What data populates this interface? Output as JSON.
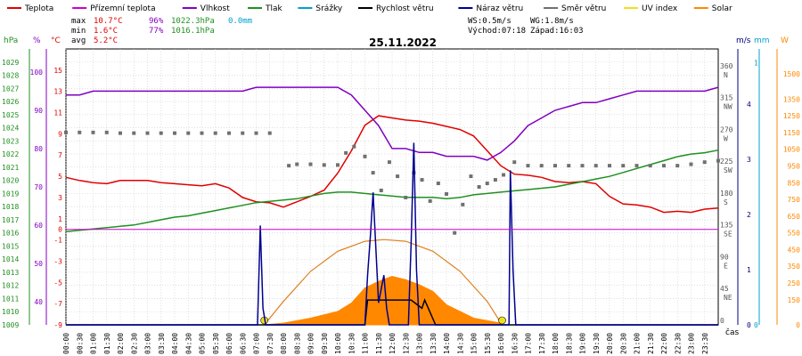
{
  "chart_data": {
    "type": "line",
    "title": "25.11.2022",
    "legend": [
      {
        "label": "Teplota",
        "color": "#e00000"
      },
      {
        "label": "Přízemní teplota",
        "color": "#cc00cc"
      },
      {
        "label": "Vlhkost",
        "color": "#8000c0"
      },
      {
        "label": "Tlak",
        "color": "#209020"
      },
      {
        "label": "Srážky",
        "color": "#00a0d0"
      },
      {
        "label": "Rychlost větru",
        "color": "#000000"
      },
      {
        "label": "Náraz větru",
        "color": "#000090"
      },
      {
        "label": "Směr větru",
        "color": "#707070"
      },
      {
        "label": "UV index",
        "color": "#f0e020"
      },
      {
        "label": "Solar",
        "color": "#ff8800"
      }
    ],
    "stats": {
      "max_label": "max",
      "max_temp": "10.7°C",
      "max_hum": "96%",
      "max_press": "1022.3hPa",
      "max_rain": "0.0mm",
      "min_label": "min",
      "min_temp": "1.6°C",
      "min_hum": "77%",
      "min_press": "1016.1hPa",
      "avg_label": "avg",
      "avg_temp": "5.2°C"
    },
    "info": {
      "ws": "WS:0.5m/s",
      "wg": "WG:1.8m/s",
      "sunrise": "Východ:07:18",
      "sunset": "Západ:16:03"
    },
    "axis_units": {
      "pressure": "hPa",
      "humidity": "%",
      "temperature": "°C",
      "wind_speed": "m/s",
      "rain": "mm",
      "solar": "W",
      "time": "čas"
    },
    "pressure_ticks": [
      "1029",
      "1028",
      "1027",
      "1026",
      "1025",
      "1024",
      "1023",
      "1022",
      "1021",
      "1020",
      "1019",
      "1018",
      "1017",
      "1016",
      "1015",
      "1014",
      "1013",
      "1012",
      "1011",
      "1010",
      "1009"
    ],
    "humidity_ticks": [
      "100",
      "90",
      "80",
      "70",
      "60",
      "50",
      "40"
    ],
    "temp_ticks": [
      "15",
      "13",
      "11",
      "9",
      "7",
      "5",
      "3",
      "1",
      "0",
      "-1",
      "-3",
      "-5",
      "-7",
      "-9"
    ],
    "direction_ticks": [
      {
        "deg": "360",
        "dir": "N"
      },
      {
        "deg": "315",
        "dir": "NW"
      },
      {
        "deg": "270",
        "dir": "W"
      },
      {
        "deg": "225",
        "dir": "SW"
      },
      {
        "deg": "180",
        "dir": "S"
      },
      {
        "deg": "135",
        "dir": "SE"
      },
      {
        "deg": "90",
        "dir": "E"
      },
      {
        "deg": "45",
        "dir": "NE"
      },
      {
        "deg": "0",
        "dir": ""
      }
    ],
    "wind_ticks": [
      "4",
      "3",
      "2",
      "1",
      "0"
    ],
    "rain_ticks": [
      "1",
      "0"
    ],
    "solar_ticks": [
      "1500",
      "1350",
      "1250",
      "1150",
      "1050",
      "950",
      "850",
      "750",
      "650",
      "550",
      "450",
      "350",
      "250",
      "150",
      "0"
    ],
    "time_labels": [
      "00:00",
      "00:30",
      "01:00",
      "01:30",
      "02:00",
      "02:30",
      "03:00",
      "03:30",
      "04:00",
      "04:30",
      "05:00",
      "05:30",
      "06:00",
      "06:30",
      "07:00",
      "07:30",
      "08:00",
      "08:30",
      "09:00",
      "09:30",
      "10:00",
      "10:30",
      "11:00",
      "11:30",
      "12:00",
      "12:30",
      "13:00",
      "13:30",
      "14:00",
      "14:30",
      "15:00",
      "15:30",
      "16:00",
      "16:30",
      "17:00",
      "17:30",
      "18:00",
      "18:30",
      "19:00",
      "19:30",
      "20:00",
      "20:30",
      "21:00",
      "21:30",
      "22:00",
      "22:30",
      "23:00",
      "23:30"
    ],
    "series": [
      {
        "name": "Teplota",
        "color": "#e00000",
        "axis": "temperature",
        "x": [
          0,
          0.5,
          1,
          1.5,
          2,
          2.5,
          3,
          3.5,
          4,
          4.5,
          5,
          5.5,
          6,
          6.5,
          7,
          7.5,
          8,
          8.5,
          9,
          9.5,
          10,
          10.5,
          11,
          11.5,
          12,
          12.5,
          13,
          13.5,
          14,
          14.5,
          15,
          15.5,
          16,
          16.5,
          17,
          17.5,
          18,
          18.5,
          19,
          19.5,
          20,
          20.5,
          21,
          21.5,
          22,
          22.5,
          23,
          23.5,
          24
        ],
        "y": [
          4.9,
          4.6,
          4.4,
          4.3,
          4.6,
          4.6,
          4.6,
          4.4,
          4.3,
          4.2,
          4.1,
          4.3,
          3.9,
          3.0,
          2.6,
          2.5,
          2.1,
          2.6,
          3.1,
          3.7,
          5.3,
          7.4,
          9.8,
          10.7,
          10.5,
          10.3,
          10.2,
          10.0,
          9.7,
          9.4,
          8.8,
          7.4,
          6.0,
          5.2,
          5.1,
          4.9,
          4.5,
          4.4,
          4.5,
          4.3,
          3.1,
          2.4,
          2.3,
          2.1,
          1.6,
          1.7,
          1.6,
          1.9,
          2.0
        ]
      },
      {
        "name": "Vlhkost",
        "color": "#8000c0",
        "axis": "humidity",
        "x": [
          0,
          0.5,
          1,
          1.5,
          2,
          2.5,
          3,
          3.5,
          4,
          4.5,
          5,
          5.5,
          6,
          6.5,
          7,
          7.5,
          8,
          8.5,
          9,
          9.5,
          10,
          10.5,
          11,
          11.5,
          12,
          12.5,
          13,
          13.5,
          14,
          14.5,
          15,
          15.5,
          16,
          16.5,
          17,
          17.5,
          18,
          18.5,
          19,
          19.5,
          20,
          20.5,
          21,
          21.5,
          22,
          22.5,
          23,
          23.5,
          24
        ],
        "y": [
          94,
          94,
          95,
          95,
          95,
          95,
          95,
          95,
          95,
          95,
          95,
          95,
          95,
          95,
          96,
          96,
          96,
          96,
          96,
          96,
          96,
          94,
          90,
          86,
          80,
          80,
          79,
          79,
          78,
          78,
          78,
          77,
          79,
          82,
          86,
          88,
          90,
          91,
          92,
          92,
          93,
          94,
          95,
          95,
          95,
          95,
          95,
          95,
          96
        ]
      },
      {
        "name": "Tlak",
        "color": "#209020",
        "axis": "pressure",
        "x": [
          0,
          0.5,
          1,
          1.5,
          2,
          2.5,
          3,
          3.5,
          4,
          4.5,
          5,
          5.5,
          6,
          6.5,
          7,
          7.5,
          8,
          8.5,
          9,
          9.5,
          10,
          10.5,
          11,
          11.5,
          12,
          12.5,
          13,
          13.5,
          14,
          14.5,
          15,
          15.5,
          16,
          16.5,
          17,
          17.5,
          18,
          18.5,
          19,
          19.5,
          20,
          20.5,
          21,
          21.5,
          22,
          22.5,
          23,
          23.5,
          24
        ],
        "y": [
          1016.1,
          1016.2,
          1016.3,
          1016.4,
          1016.5,
          1016.6,
          1016.8,
          1017.0,
          1017.2,
          1017.3,
          1017.5,
          1017.7,
          1017.9,
          1018.1,
          1018.3,
          1018.4,
          1018.5,
          1018.6,
          1018.8,
          1019.0,
          1019.1,
          1019.1,
          1019.0,
          1018.9,
          1018.8,
          1018.7,
          1018.7,
          1018.7,
          1018.6,
          1018.7,
          1018.9,
          1019.0,
          1019.1,
          1019.2,
          1019.3,
          1019.4,
          1019.5,
          1019.7,
          1019.9,
          1020.1,
          1020.3,
          1020.6,
          1020.9,
          1021.2,
          1021.5,
          1021.8,
          1022.0,
          1022.1,
          1022.3
        ]
      },
      {
        "name": "Směr větru",
        "color": "#707070",
        "axis": "direction",
        "x": [
          0,
          0.5,
          1,
          1.5,
          2,
          2.5,
          3,
          3.5,
          4,
          4.5,
          5,
          5.5,
          6,
          6.5,
          7,
          7.5,
          8.2,
          8.5,
          9,
          9.5,
          10,
          10.3,
          10.6,
          11.0,
          11.3,
          11.6,
          11.9,
          12.2,
          12.5,
          12.8,
          13.1,
          13.4,
          13.7,
          14.0,
          14.3,
          14.6,
          14.9,
          15.2,
          15.5,
          15.8,
          16.1,
          16.5,
          17,
          17.5,
          18,
          18.5,
          19,
          19.5,
          20,
          20.5,
          21,
          21.5,
          22,
          22.5,
          23,
          23.5,
          24
        ],
        "y": [
          272,
          272,
          272,
          272,
          271,
          271,
          271,
          271,
          271,
          271,
          271,
          271,
          271,
          271,
          271,
          271,
          225,
          227,
          227,
          226,
          226,
          243,
          252,
          238,
          215,
          190,
          230,
          210,
          180,
          215,
          205,
          175,
          200,
          185,
          130,
          170,
          210,
          195,
          200,
          205,
          212,
          230,
          225,
          225,
          225,
          225,
          225,
          225,
          225,
          225,
          225,
          225,
          225,
          225,
          227,
          230,
          232
        ]
      },
      {
        "name": "Rychlost větru",
        "color": "#000000",
        "axis": "wind",
        "x": [
          0,
          7.0,
          11.0,
          11.1,
          11.4,
          11.5,
          11.8,
          11.9,
          12.6,
          12.7,
          13.1,
          13.2,
          13.6,
          24
        ],
        "y": [
          0,
          0,
          0,
          0.45,
          0.45,
          0.45,
          0.45,
          0.45,
          0.45,
          0.45,
          0.3,
          0.45,
          0,
          0
        ]
      },
      {
        "name": "Náraz větru",
        "color": "#000090",
        "axis": "wind",
        "x": [
          0,
          7.0,
          7.05,
          7.15,
          7.25,
          7.35,
          11.0,
          11.1,
          11.2,
          11.3,
          11.5,
          11.7,
          11.8,
          11.9,
          12.0,
          12.6,
          12.7,
          12.8,
          12.9,
          13.0,
          16.2,
          16.3,
          16.35,
          16.45,
          16.55,
          24
        ],
        "y": [
          0,
          0,
          0,
          1.8,
          0.3,
          0,
          0,
          0.9,
          1.6,
          2.4,
          0.4,
          0.9,
          0.3,
          0,
          0,
          0,
          1.5,
          3.3,
          1.0,
          0,
          0,
          0,
          2.8,
          1.0,
          0,
          0
        ]
      },
      {
        "name": "Solar",
        "color": "#ff8800",
        "axis": "solar",
        "x": [
          7.3,
          8.0,
          9.0,
          10.0,
          10.5,
          11.0,
          11.5,
          12.0,
          12.5,
          13.0,
          13.5,
          14.0,
          15.0,
          16.0,
          16.05
        ],
        "y": [
          0,
          10,
          40,
          80,
          130,
          220,
          260,
          290,
          270,
          240,
          200,
          120,
          40,
          10,
          0
        ]
      },
      {
        "name": "Solar max",
        "color": "#ff8800",
        "axis": "solar",
        "x": [
          7.3,
          8.0,
          9.0,
          10.0,
          11.0,
          11.7,
          12.5,
          13.5,
          14.5,
          15.5,
          16.05
        ],
        "y": [
          0,
          140,
          320,
          440,
          500,
          510,
          500,
          440,
          320,
          140,
          0
        ]
      },
      {
        "name": "Přízemní teplota",
        "color": "#cc00cc",
        "axis": "temperature",
        "x": [
          0,
          24
        ],
        "y": [
          0,
          0
        ]
      }
    ],
    "ylim": {
      "temperature": [
        -9,
        17
      ],
      "humidity": [
        34,
        106
      ],
      "pressure": [
        1009,
        1030
      ],
      "direction": [
        0,
        390
      ],
      "wind": [
        0,
        5
      ],
      "rain": [
        0,
        1
      ],
      "solar": [
        0,
        1650
      ]
    },
    "xlim": [
      0,
      24
    ],
    "grid": true
  }
}
